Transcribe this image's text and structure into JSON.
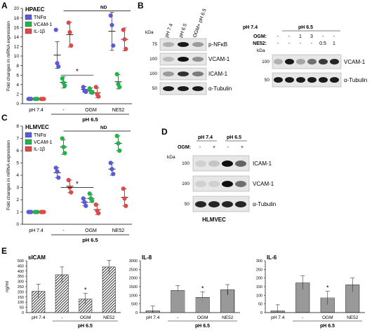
{
  "panels": {
    "A": {
      "letter": "A",
      "cell_line": "HPAEC",
      "ylabel": "Fold changes in mRNA expression",
      "yticks": [
        "0",
        "2",
        "4",
        "6",
        "8",
        "10",
        "12",
        "14",
        "16",
        "18",
        "20"
      ],
      "xcats": [
        "pH 7.4",
        "-",
        "OGM",
        "NE52"
      ],
      "group_label": "pH 6.5",
      "nd": "ND",
      "star": "*",
      "legend": [
        "TNFα",
        "VCAM-1",
        "IL-1β"
      ]
    },
    "B": {
      "letter": "B",
      "kda": "kDa",
      "left_lanes": [
        "pH 7.4",
        "pH 6.5",
        "OGM+ pH 6.5"
      ],
      "left_rows": [
        {
          "kda": "75",
          "label": "p-NFκB"
        },
        {
          "kda": "100",
          "label": "VCAM-1"
        },
        {
          "kda": "100",
          "label": "ICAM-1"
        },
        {
          "kda": "50",
          "label": "α-Tubulin"
        }
      ],
      "right_top": [
        "pH 7.4",
        "pH 6.5"
      ],
      "ogm_label": "OGM:",
      "ogm_vals": [
        "-",
        "-",
        "1",
        "3",
        "-",
        "-"
      ],
      "ne52_label": "NE52:",
      "ne52_vals": [
        "-",
        "-",
        "-",
        "-",
        "0.5",
        "1"
      ],
      "right_rows": [
        {
          "kda": "100",
          "label": "VCAM-1"
        },
        {
          "kda": "50",
          "label": "α-Tubulin"
        }
      ]
    },
    "C": {
      "letter": "C",
      "cell_line": "HLMVEC",
      "ylabel": "Fold changes in mRNA expression",
      "yticks": [
        "0",
        "1",
        "2",
        "3",
        "4",
        "5",
        "6",
        "7",
        "8"
      ],
      "xcats": [
        "pH 7.4",
        "-",
        "OGM",
        "NE52"
      ],
      "group_label": "pH 6.5",
      "nd": "ND",
      "star": "*",
      "legend": [
        "TNFα",
        "VCAM-1",
        "IL-1β"
      ]
    },
    "D": {
      "letter": "D",
      "kda": "kDa",
      "top": [
        "pH 7.4",
        "pH 6.5"
      ],
      "ogm_label": "OGM:",
      "ogm_vals": [
        "-",
        "+",
        "-",
        "+"
      ],
      "rows": [
        {
          "kda": "100",
          "label": "ICAM-1"
        },
        {
          "kda": "100",
          "label": "VCAM-1"
        },
        {
          "kda": "50",
          "label": "α-Tubulin"
        }
      ],
      "caption": "HLMVEC"
    },
    "E": {
      "letter": "E",
      "unit": "ng/ml",
      "group_label": "pH 6.5",
      "xcats": [
        "pH 7.4",
        "-",
        "OGM",
        "NE52"
      ],
      "star": "*",
      "subtitles": [
        "sICAM",
        "IL-8",
        "IL-6"
      ],
      "ticks": [
        [
          "0",
          "50",
          "100",
          "150",
          "200",
          "250",
          "300",
          "350",
          "400",
          "450",
          "500"
        ],
        [
          "0",
          "500",
          "1000",
          "1500",
          "2000",
          "2500",
          "3000"
        ],
        [
          "0",
          "50",
          "100",
          "150",
          "200",
          "250",
          "300"
        ]
      ]
    }
  },
  "chart_data": [
    {
      "type": "scatter",
      "title": "HPAEC",
      "ylabel": "Fold changes in mRNA expression",
      "ylim": [
        0,
        20
      ],
      "categories": [
        "pH 7.4",
        "-",
        "OGM",
        "NE52"
      ],
      "series": [
        {
          "name": "TNFα",
          "color": "#5b5bd6",
          "mean": [
            1,
            10.2,
            3.0,
            15.2
          ],
          "sd": [
            0.1,
            2.8,
            0.6,
            4.0
          ],
          "points": [
            [
              1,
              1,
              1
            ],
            [
              15.5,
              8.5,
              7.8
            ],
            [
              3.5,
              2.7,
              2.5
            ],
            [
              18.5,
              16.5,
              12.2
            ]
          ]
        },
        {
          "name": "VCAM-1",
          "color": "#22b34a",
          "mean": [
            1,
            4.5,
            2.7,
            4.6
          ],
          "sd": [
            0.1,
            1.2,
            0.6,
            1.5
          ],
          "points": [
            [
              1,
              1,
              1
            ],
            [
              5.3,
              4.4,
              3.8
            ],
            [
              3.2,
              2.6,
              2.3
            ],
            [
              6.2,
              4.1,
              3.5
            ]
          ]
        },
        {
          "name": "IL-1β",
          "color": "#e04848",
          "mean": [
            1,
            14.5,
            2.3,
            13.5
          ],
          "sd": [
            0.1,
            2.6,
            1.0,
            2.4
          ],
          "points": [
            [
              1,
              1,
              1
            ],
            [
              17.0,
              15.0,
              12.2
            ],
            [
              3.5,
              2.0,
              1.5
            ],
            [
              15.5,
              13.5,
              11.5
            ]
          ]
        }
      ]
    },
    {
      "type": "scatter",
      "title": "HLMVEC",
      "ylabel": "Fold changes in mRNA expression",
      "ylim": [
        0,
        8
      ],
      "categories": [
        "pH 7.4",
        "-",
        "OGM",
        "NE52"
      ],
      "series": [
        {
          "name": "TNFα",
          "color": "#5b5bd6",
          "mean": [
            1,
            4.2,
            1.8,
            4.5
          ],
          "sd": [
            0.05,
            0.4,
            0.3,
            0.5
          ],
          "points": [
            [
              1,
              1,
              1
            ],
            [
              4.6,
              4.3,
              3.8
            ],
            [
              2.1,
              1.8,
              1.5
            ],
            [
              5.0,
              4.5,
              4.1
            ]
          ]
        },
        {
          "name": "VCAM-1",
          "color": "#22b34a",
          "mean": [
            1,
            6.3,
            2.1,
            6.6
          ],
          "sd": [
            0.05,
            0.6,
            0.3,
            0.6
          ],
          "points": [
            [
              1,
              1,
              1
            ],
            [
              7.0,
              6.3,
              5.8
            ],
            [
              2.5,
              2.1,
              1.9
            ],
            [
              7.2,
              6.6,
              6.0
            ]
          ]
        },
        {
          "name": "IL-1β",
          "color": "#e04848",
          "mean": [
            1,
            3.1,
            1.2,
            2.2
          ],
          "sd": [
            0.05,
            0.5,
            0.4,
            0.7
          ],
          "points": [
            [
              1,
              1,
              1
            ],
            [
              3.6,
              3.0,
              2.6
            ],
            [
              1.6,
              1.1,
              0.9
            ],
            [
              2.9,
              2.1,
              1.5
            ]
          ]
        }
      ]
    },
    {
      "type": "bar",
      "title": "sICAM",
      "ylabel": "ng/ml",
      "ylim": [
        0,
        500
      ],
      "categories": [
        "pH 7.4",
        "-",
        "OGM",
        "NE52"
      ],
      "values": [
        205,
        365,
        130,
        440
      ],
      "errors": [
        70,
        75,
        55,
        65
      ]
    },
    {
      "type": "bar",
      "title": "IL-8",
      "ylim": [
        0,
        3000
      ],
      "categories": [
        "pH 7.4",
        "-",
        "OGM",
        "NE52"
      ],
      "values": [
        100,
        1280,
        880,
        1320
      ],
      "errors": [
        280,
        280,
        320,
        300
      ]
    },
    {
      "type": "bar",
      "title": "IL-6",
      "ylim": [
        0,
        300
      ],
      "categories": [
        "pH 7.4",
        "-",
        "OGM",
        "NE52"
      ],
      "values": [
        10,
        172,
        85,
        160
      ],
      "errors": [
        35,
        40,
        38,
        40
      ]
    }
  ]
}
